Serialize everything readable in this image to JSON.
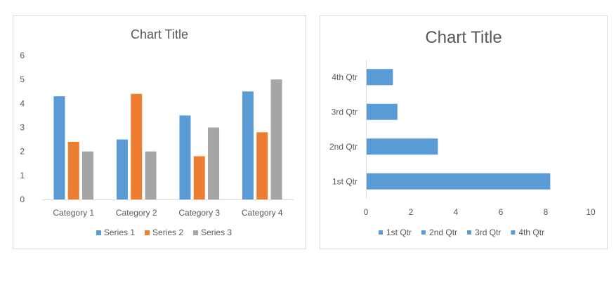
{
  "chart_data": [
    {
      "type": "bar",
      "title": "Chart Title",
      "categories": [
        "Category 1",
        "Category 2",
        "Category 3",
        "Category 4"
      ],
      "series": [
        {
          "name": "Series 1",
          "values": [
            4.3,
            2.5,
            3.5,
            4.5
          ]
        },
        {
          "name": "Series 2",
          "values": [
            2.4,
            4.4,
            1.8,
            2.8
          ]
        },
        {
          "name": "Series 3",
          "values": [
            2,
            2,
            3,
            5
          ]
        }
      ],
      "ylim": [
        0,
        6
      ],
      "yticks": [
        0,
        1,
        2,
        3,
        4,
        5,
        6
      ],
      "grid": false,
      "legend": "bottom",
      "colors": [
        "#5b9bd5",
        "#ed7d31",
        "#a5a5a5"
      ]
    },
    {
      "type": "bar",
      "orientation": "horizontal",
      "title": "Chart Title",
      "categories": [
        "1st Qtr",
        "2nd Qtr",
        "3rd Qtr",
        "4th Qtr"
      ],
      "values": [
        8.2,
        3.2,
        1.4,
        1.2
      ],
      "xlim": [
        0,
        10
      ],
      "xticks": [
        0,
        2,
        4,
        6,
        8,
        10
      ],
      "grid": false,
      "legend": "bottom",
      "legend_entries": [
        "1st Qtr",
        "2nd Qtr",
        "3rd Qtr",
        "4th Qtr"
      ],
      "colors": [
        "#5b9bd5"
      ]
    }
  ]
}
